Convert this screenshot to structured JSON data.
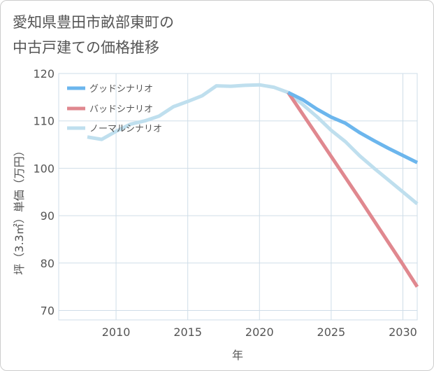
{
  "title": {
    "line1": "愛知県豊田市畝部東町の",
    "line2": "中古戸建ての価格推移"
  },
  "colors": {
    "good": "#6cb6ed",
    "bad": "#e0888f",
    "normal": "#bfdfee",
    "grid": "#cfdde8",
    "text": "#555555"
  },
  "chart_data": {
    "type": "line",
    "title": "愛知県豊田市畝部東町の中古戸建ての価格推移",
    "xlabel": "年",
    "ylabel": "坪（3.3㎡）単価（万円）",
    "xlim": [
      2006,
      2031
    ],
    "ylim": [
      68,
      120
    ],
    "xticks": [
      2010,
      2015,
      2020,
      2025,
      2030
    ],
    "yticks": [
      70,
      80,
      90,
      100,
      110,
      120
    ],
    "legend_position": "top-left",
    "series": [
      {
        "name": "グッドシナリオ",
        "key": "good",
        "x": [
          2022,
          2023,
          2024,
          2025,
          2026,
          2027,
          2028,
          2029,
          2030,
          2031
        ],
        "values": [
          116.0,
          114.5,
          112.5,
          110.8,
          109.5,
          107.5,
          105.8,
          104.2,
          102.7,
          101.2
        ]
      },
      {
        "name": "バッドシナリオ",
        "key": "bad",
        "x": [
          2022,
          2023,
          2024,
          2025,
          2026,
          2027,
          2028,
          2029,
          2030,
          2031
        ],
        "values": [
          116.0,
          111.5,
          107.0,
          102.5,
          98.0,
          93.5,
          88.9,
          84.3,
          79.7,
          75.0
        ]
      },
      {
        "name": "ノーマルシナリオ",
        "key": "normal",
        "x": [
          2008,
          2009,
          2010,
          2011,
          2012,
          2013,
          2014,
          2015,
          2016,
          2017,
          2018,
          2019,
          2020,
          2021,
          2022,
          2023,
          2024,
          2025,
          2026,
          2027,
          2028,
          2029,
          2030,
          2031
        ],
        "values": [
          106.6,
          106.1,
          107.8,
          109.3,
          110.0,
          111.0,
          113.0,
          114.1,
          115.3,
          117.4,
          117.3,
          117.5,
          117.6,
          117.1,
          116.0,
          113.5,
          110.9,
          108.0,
          105.6,
          102.6,
          100.0,
          97.5,
          95.0,
          92.5
        ]
      }
    ]
  }
}
